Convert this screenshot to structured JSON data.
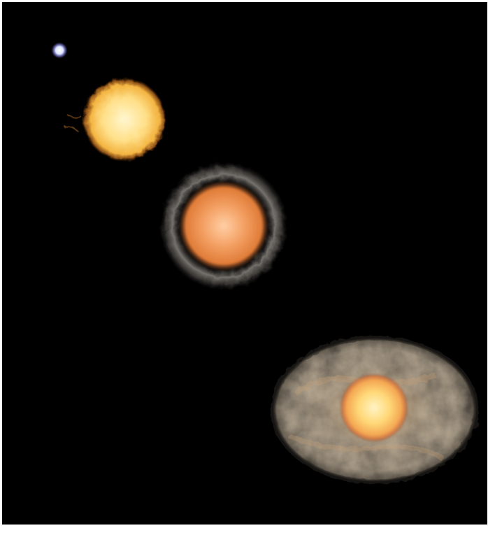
{
  "scene": {
    "description_visible_text": "",
    "background_color": "#000000",
    "objects": [
      {
        "name": "white-dwarf-star",
        "color": "#e8ecff"
      },
      {
        "name": "yellow-star",
        "color": "#ffd56a"
      },
      {
        "name": "orange-star-with-dust-shell",
        "color": "#f29a55"
      },
      {
        "name": "star-with-elliptical-nebula",
        "color": "#ffc86a"
      }
    ]
  }
}
